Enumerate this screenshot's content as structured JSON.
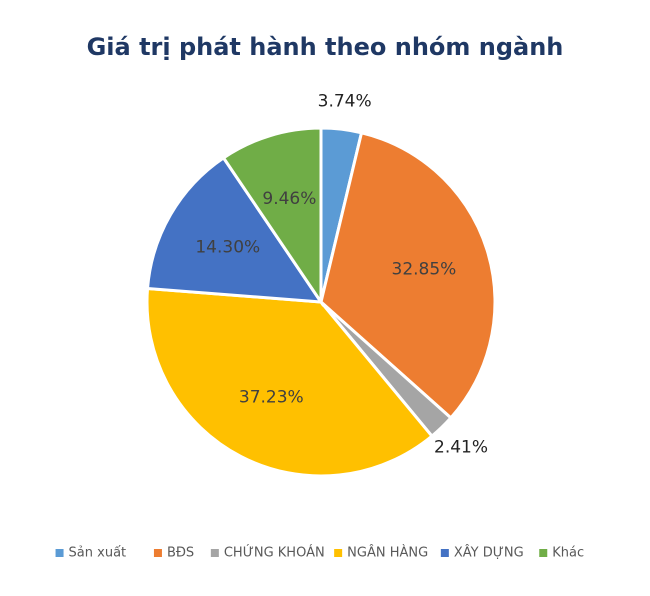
{
  "chart_data": {
    "type": "pie",
    "title": "Giá trị phát hành theo nhóm ngành",
    "categories": [
      "Sản xuất",
      "BĐS",
      "CHỨNG KHOÁN",
      "NGÂN HÀNG",
      "XÂY DỰNG",
      "Khác"
    ],
    "values": [
      3.74,
      32.85,
      2.41,
      37.23,
      14.3,
      9.46
    ],
    "value_labels": [
      "3.74%",
      "32.85%",
      "2.41%",
      "37.23%",
      "14.30%",
      "9.46%"
    ],
    "colors": [
      "#5b9bd5",
      "#ed7d31",
      "#a5a5a5",
      "#ffc000",
      "#4472c4",
      "#70ad47"
    ],
    "legend": "bottom"
  }
}
